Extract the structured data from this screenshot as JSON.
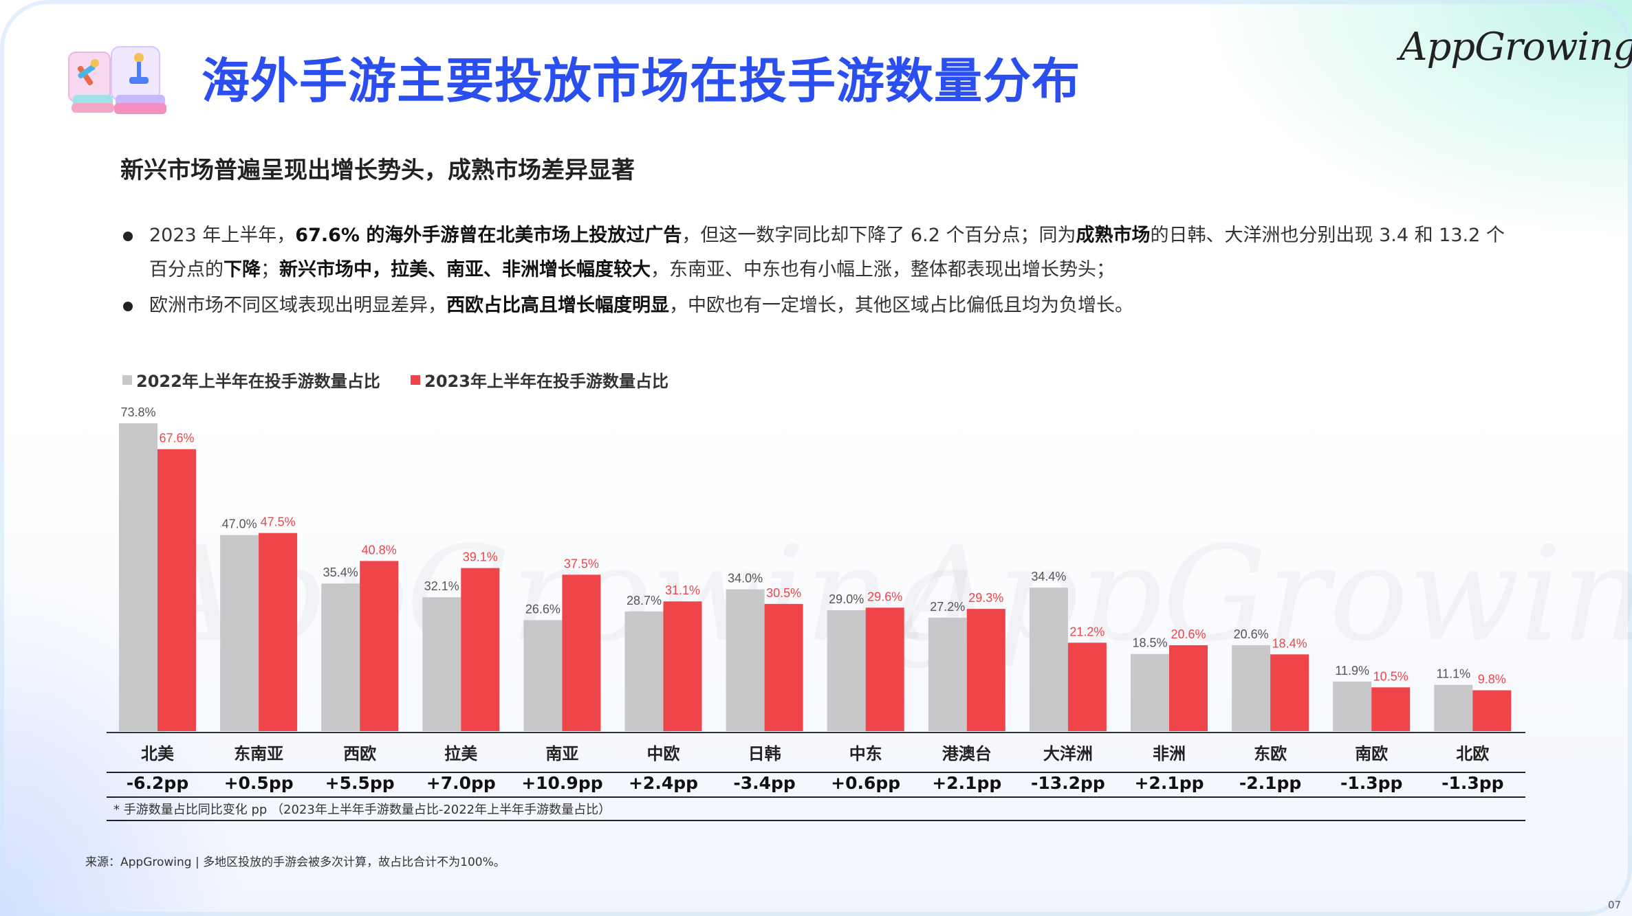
{
  "header": {
    "title": "海外手游主要投放市场在投手游数量分布",
    "logo_text": "AppGrowing"
  },
  "subtitle": "新兴市场普遍呈现出增长势头，成熟市场差异显著",
  "bullets": [
    {
      "segments": [
        {
          "text": "2023 年上半年，",
          "bold": false
        },
        {
          "text": "67.6% 的海外手游曾在北美市场上投放过广告",
          "bold": true
        },
        {
          "text": "，但这一数字同比却下降了 6.2 个百分点；同为",
          "bold": false
        },
        {
          "text": "成熟市场",
          "bold": true
        },
        {
          "text": "的日韩、大洋洲也分别出现 3.4 和 13.2 个百分点的",
          "bold": false
        },
        {
          "text": "下降",
          "bold": true
        },
        {
          "text": "；",
          "bold": false
        },
        {
          "text": "新兴市场中，拉美、南亚、非洲增长幅度较大",
          "bold": true
        },
        {
          "text": "，东南亚、中东也有小幅上涨，整体都表现出增长势头；",
          "bold": false
        }
      ]
    },
    {
      "segments": [
        {
          "text": "欧洲市场不同区域表现出明显差异，",
          "bold": false
        },
        {
          "text": "西欧占比高且增长幅度明显",
          "bold": true
        },
        {
          "text": "，中欧也有一定增长，其他区域占比偏低且均为负增长。",
          "bold": false
        }
      ]
    }
  ],
  "colors": {
    "series_2022": "#c8c8cb",
    "series_2023": "#ef4449",
    "title_blue": "#2a4ef0"
  },
  "chart_data": {
    "type": "bar",
    "title": "",
    "xlabel": "",
    "ylabel": "",
    "ylim": [
      0,
      80
    ],
    "unit": "%",
    "categories": [
      "北美",
      "东南亚",
      "西欧",
      "拉美",
      "南亚",
      "中欧",
      "日韩",
      "中东",
      "港澳台",
      "大洋洲",
      "非洲",
      "东欧",
      "南欧",
      "北欧"
    ],
    "series": [
      {
        "name": "2022年上半年在投手游数量占比",
        "values": [
          73.8,
          47.0,
          35.4,
          32.1,
          26.6,
          28.7,
          34.0,
          29.0,
          27.2,
          34.4,
          18.5,
          20.6,
          11.9,
          11.1
        ]
      },
      {
        "name": "2023年上半年在投手游数量占比",
        "values": [
          67.6,
          47.5,
          40.8,
          39.1,
          37.5,
          31.1,
          30.5,
          29.6,
          29.3,
          21.2,
          20.6,
          18.4,
          10.5,
          9.8
        ]
      }
    ],
    "changes": [
      "-6.2pp",
      "+0.5pp",
      "+5.5pp",
      "+7.0pp",
      "+10.9pp",
      "+2.4pp",
      "-3.4pp",
      "+0.6pp",
      "+2.1pp",
      "-13.2pp",
      "+2.1pp",
      "-2.1pp",
      "-1.3pp",
      "-1.3pp"
    ],
    "footnote": "* 手游数量占比同比变化 pp （2023年上半年手游数量占比-2022年上半年手游数量占比）",
    "watermark": "AppGrowing"
  },
  "source": "来源：AppGrowing | 多地区投放的手游会被多次计算，故占比合计不为100%。",
  "page_number": "07"
}
